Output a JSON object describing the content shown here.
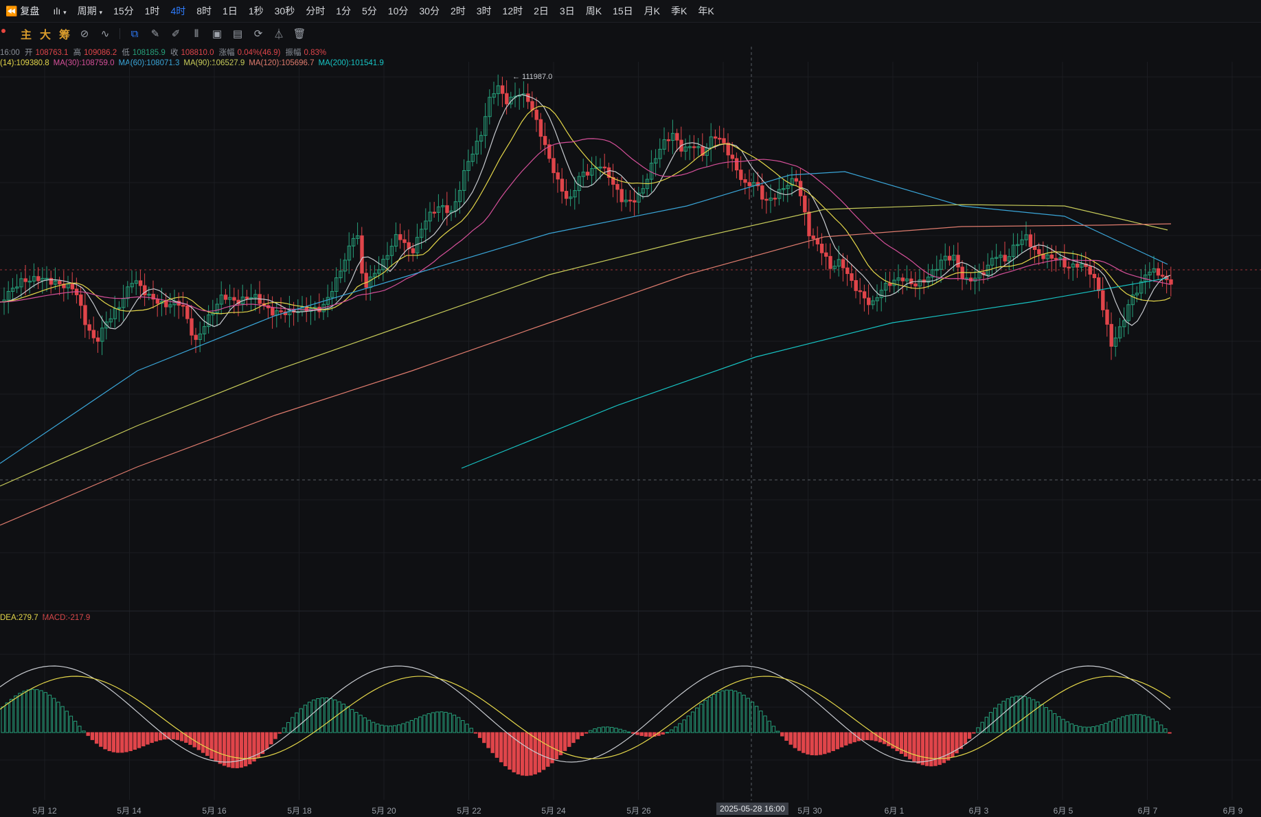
{
  "toolbar": {
    "replay_label": "复盘",
    "chart_type_label": "ılı",
    "period_label": "周期",
    "intervals": [
      {
        "label": "15分"
      },
      {
        "label": "1时"
      },
      {
        "label": "4时",
        "active": true
      },
      {
        "label": "8时"
      },
      {
        "label": "1日"
      },
      {
        "label": "1秒"
      },
      {
        "label": "30秒"
      },
      {
        "label": "分时"
      },
      {
        "label": "1分"
      },
      {
        "label": "5分"
      },
      {
        "label": "10分"
      },
      {
        "label": "30分"
      },
      {
        "label": "2时"
      },
      {
        "label": "3时"
      },
      {
        "label": "12时"
      },
      {
        "label": "2日"
      },
      {
        "label": "3日"
      },
      {
        "label": "周K"
      },
      {
        "label": "15日"
      },
      {
        "label": "月K"
      },
      {
        "label": "季K"
      },
      {
        "label": "年K"
      }
    ]
  },
  "indicator_bar": {
    "items": [
      "主",
      "大",
      "筹"
    ],
    "icons": [
      "indicator-icon",
      "compare-icon",
      "select-cursor-icon",
      "brush-icon",
      "pen-icon",
      "candles-icon",
      "clipboard-icon",
      "template-icon",
      "magnet-icon",
      "filter-icon",
      "trash-icon"
    ]
  },
  "ohlc": {
    "time": "16:00",
    "open_label": "开",
    "open": "108763.1",
    "high_label": "高",
    "high": "109086.2",
    "low_label": "低",
    "low": "108185.9",
    "close_label": "收",
    "close": "108810.0",
    "change_label": "涨幅",
    "change": "0.04%(46.9)",
    "amp_label": "振幅",
    "amp": "0.83%"
  },
  "ma": [
    {
      "text": "(14):109380.8",
      "color": "#e6d84a"
    },
    {
      "text": "MA(30):108759.0",
      "color": "#d6509a"
    },
    {
      "text": "MA(60):108071.3",
      "color": "#3aa6d9"
    },
    {
      "text": "MA(90):106527.9",
      "color": "#c8cc5a"
    },
    {
      "text": "MA(120):105696.7",
      "color": "#e07c6e"
    },
    {
      "text": "MA(200):101541.9",
      "color": "#17c4c4"
    }
  ],
  "macd": [
    {
      "text": "DEA:279.7",
      "color": "#e6d84a"
    },
    {
      "text": "MACD:-217.9",
      "color": "#d9484a"
    }
  ],
  "peak_label": "← 111987.0",
  "crosshair_label": "2025-05-28 16:00",
  "x_axis": [
    "5月 12",
    "5月 14",
    "5月 16",
    "5月 18",
    "5月 20",
    "5月 22",
    "5月 24",
    "5月 26",
    "5月 30",
    "6月 1",
    "6月 3",
    "6月 5",
    "6月 7",
    "6月 9"
  ],
  "colors": {
    "up": "#26a17b",
    "down": "#e0454a",
    "bg": "#0f1013",
    "accent": "#2f7dff"
  }
}
